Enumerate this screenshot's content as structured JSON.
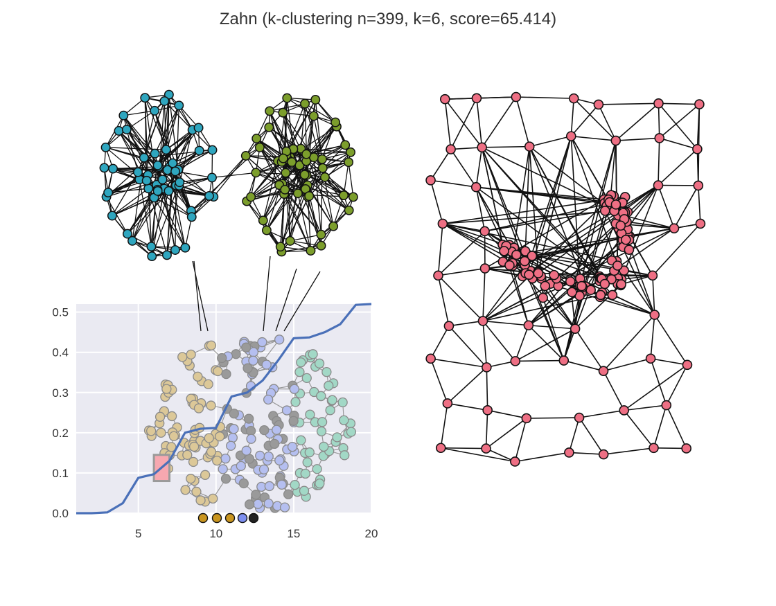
{
  "title": "Zahn (k-clustering n=399, k=6, score=65.414)",
  "colors": {
    "cluster_teal": "#2fa6bf",
    "cluster_green": "#7c9e2c",
    "cluster_pink": "#ee6f84",
    "gray_node": "#9a9a9a",
    "tan_node": "#dcc898",
    "lavender_node": "#b5bff0",
    "mint_node": "#a2d8c6",
    "orange_node": "#c9951f",
    "blue_node": "#7d8ff0",
    "line_series": "#4a70b8",
    "plot_background": "#eaeaf2",
    "highlight_box": "#f7a8b0",
    "edge": "#111111"
  },
  "chart_data": {
    "type": "line",
    "title": "",
    "xlabel": "",
    "ylabel": "",
    "xlim": [
      1,
      20
    ],
    "ylim": [
      0,
      0.52
    ],
    "grid": true,
    "xticks": [
      "5",
      "10",
      "15",
      "20"
    ],
    "yticks": [
      "0.0",
      "0.1",
      "0.2",
      "0.3",
      "0.4",
      "0.5"
    ],
    "series": [
      {
        "x": [
          1,
          2,
          3,
          4,
          5,
          6,
          7,
          8,
          9,
          10,
          11,
          12,
          13,
          14,
          15,
          16,
          17,
          18,
          19,
          20
        ],
        "y": [
          0.0,
          0.0,
          0.002,
          0.025,
          0.088,
          0.097,
          0.13,
          0.2,
          0.21,
          0.212,
          0.29,
          0.3,
          0.33,
          0.38,
          0.435,
          0.437,
          0.45,
          0.47,
          0.518,
          0.52
        ]
      }
    ],
    "highlight": {
      "x": [
        6.0,
        7.0
      ],
      "y": [
        0.08,
        0.145
      ]
    }
  }
}
